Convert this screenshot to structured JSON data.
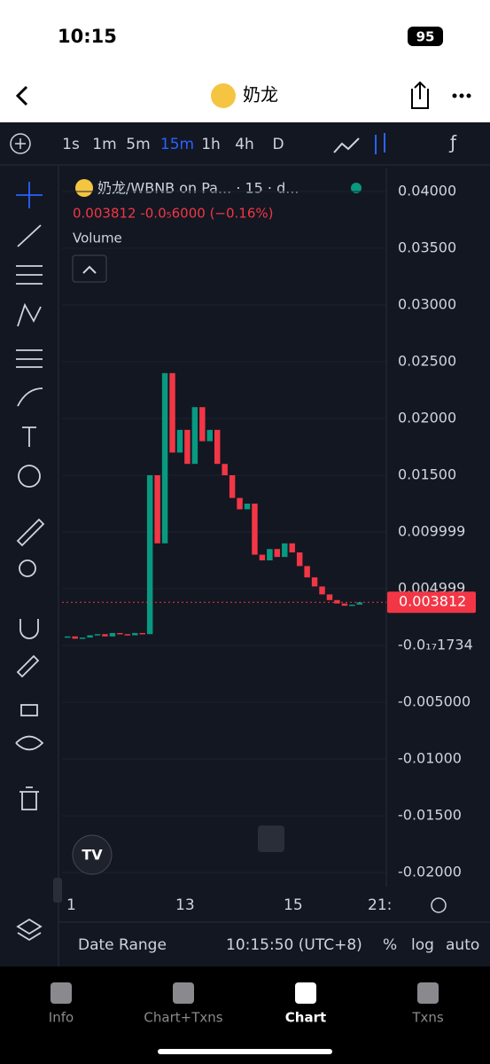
{
  "status": {
    "time": "10:15",
    "battery": "95"
  },
  "header": {
    "title": "奶龙"
  },
  "toolbar": {
    "intervals": [
      "1s",
      "1m",
      "5m",
      "15m",
      "1h",
      "4h",
      "D"
    ],
    "active_index": 3
  },
  "chart": {
    "legend_title": "奶龙/WBNB on Pa... · 15 · d...",
    "legend_change": "0.003812  -0.0₅6000 (−0.16%)",
    "volume_label": "Volume",
    "ylim": [
      -0.02,
      0.04
    ],
    "axis_labels": [
      {
        "value": 0.04,
        "label": "0.04000"
      },
      {
        "value": 0.035,
        "label": "0.03500"
      },
      {
        "value": 0.03,
        "label": "0.03000"
      },
      {
        "value": 0.025,
        "label": "0.02500"
      },
      {
        "value": 0.02,
        "label": "0.02000"
      },
      {
        "value": 0.015,
        "label": "0.01500"
      },
      0.009999,
      0.004999,
      {
        "value": -1.734e-18,
        "label": "-0.0₁₇1734"
      },
      {
        "value": -0.005,
        "label": "-0.005000"
      },
      {
        "value": -0.01,
        "label": "-0.01000"
      },
      {
        "value": -0.015,
        "label": "-0.01500"
      },
      {
        "value": -0.02,
        "label": "-0.02000"
      }
    ],
    "current_price": 0.003812,
    "time_labels": [
      "1",
      "13",
      "15",
      "21:"
    ],
    "closes": [
      0.0008,
      0.0006,
      0.0007,
      0.0009,
      0.001,
      0.0008,
      0.0011,
      0.001,
      0.0009,
      0.0011,
      0.001,
      0.015,
      0.009,
      0.024,
      0.017,
      0.019,
      0.016,
      0.021,
      0.018,
      0.019,
      0.016,
      0.015,
      0.013,
      0.012,
      0.0125,
      0.008,
      0.0075,
      0.0085,
      0.0078,
      0.009,
      0.0082,
      0.007,
      0.006,
      0.0052,
      0.0045,
      0.004,
      0.0037,
      0.0035,
      0.0036,
      0.0038
    ]
  },
  "bottom_bar": {
    "date_range": "Date Range",
    "clock": "10:15:50 (UTC+8)",
    "percent": "%",
    "log": "log",
    "auto": "auto"
  },
  "tabs": {
    "labels": [
      "Info",
      "Chart+Txns",
      "Chart",
      "Txns"
    ],
    "active_index": 2
  }
}
